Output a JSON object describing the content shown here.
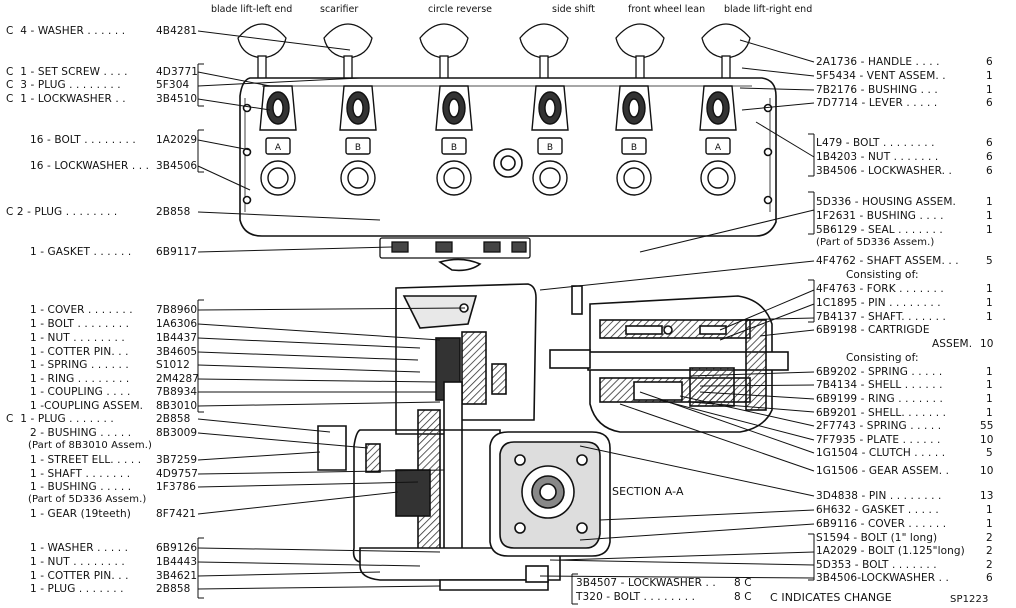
{
  "top_labels": [
    {
      "id": "blade-lift-left",
      "text": "blade lift-left end"
    },
    {
      "id": "scarifier",
      "text": "scarifier"
    },
    {
      "id": "circle-reverse",
      "text": "circle reverse"
    },
    {
      "id": "side-shift",
      "text": "side shift"
    },
    {
      "id": "front-wheel-lean",
      "text": "front wheel lean"
    },
    {
      "id": "blade-lift-right",
      "text": "blade lift-right end"
    }
  ],
  "left_parts": [
    {
      "text": "C  4 - WASHER . . . . . .",
      "num": "4B4281"
    },
    {
      "text": "C  1 - SET SCREW . . . .",
      "num": "4D3771"
    },
    {
      "text": "C  3 - PLUG . . . . . . . .",
      "num": "5F304"
    },
    {
      "text": "C  1 - LOCKWASHER . .",
      "num": "3B4510"
    },
    {
      "text": "16 - BOLT . . . . . . . .",
      "num": "1A2029"
    },
    {
      "text": "16 - LOCKWASHER . . .",
      "num": "3B4506"
    },
    {
      "text": "C 2 - PLUG . . . . . . . .",
      "num": "2B858"
    },
    {
      "text": "1 - GASKET . . . . . .",
      "num": "6B9117"
    },
    {
      "text": "1 - COVER . . . . . . .",
      "num": "7B8960"
    },
    {
      "text": "1 - BOLT . . . . . . . .",
      "num": "1A6306"
    },
    {
      "text": "1 - NUT . . . . . . . .",
      "num": "1B4437"
    },
    {
      "text": "1 - COTTER PIN. . .",
      "num": "3B4605"
    },
    {
      "text": "1 - SPRING . . . . . .",
      "num": "S1012"
    },
    {
      "text": "1 - RING . . . . . . . .",
      "num": "2M4287"
    },
    {
      "text": "1 - COUPLING . . . .",
      "num": "7B8934"
    },
    {
      "text": "1 -COUPLING ASSEM.",
      "num": "8B3010"
    },
    {
      "text": "C  1 - PLUG . . . . . . .",
      "num": "2B858"
    },
    {
      "text": "2 - BUSHING . . . . .",
      "num": "8B3009"
    },
    {
      "text": "(Part of 8B3010 Assem.)",
      "num": ""
    },
    {
      "text": "1 - STREET ELL. . . . .",
      "num": "3B7259"
    },
    {
      "text": "1 - SHAFT . . . . . . .",
      "num": "4D9757"
    },
    {
      "text": "1 - BUSHING . . . . .",
      "num": "1F3786"
    },
    {
      "text": "(Part of 5D336 Assem.)",
      "num": ""
    },
    {
      "text": "1 - GEAR (19teeth)",
      "num": "8F7421"
    },
    {
      "text": "1 - WASHER . . . . .",
      "num": "6B9126"
    },
    {
      "text": "1 - NUT . . . . . . . .",
      "num": "1B4443"
    },
    {
      "text": "1 - COTTER PIN. . .",
      "num": "3B4621"
    },
    {
      "text": "1 - PLUG . . . . . . .",
      "num": "2B858"
    }
  ],
  "right_parts": [
    {
      "text": "2A1736 - HANDLE . . . .",
      "qty": "6"
    },
    {
      "text": "5F5434 - VENT ASSEM. .",
      "qty": "1"
    },
    {
      "text": "7B2176 - BUSHING . . .",
      "qty": "1"
    },
    {
      "text": "7D7714 - LEVER . . . . .",
      "qty": "6"
    },
    {
      "text": "L479 - BOLT . . . . . . . .",
      "qty": "6"
    },
    {
      "text": "1B4203 - NUT . . . . . . .",
      "qty": "6"
    },
    {
      "text": "3B4506 - LOCKWASHER. .",
      "qty": "6"
    },
    {
      "text": "5D336 - HOUSING ASSEM.",
      "qty": "1"
    },
    {
      "text": "1F2631 - BUSHING . . . .",
      "qty": "1"
    },
    {
      "text": "5B6129 - SEAL . . . . . . .",
      "qty": "1"
    },
    {
      "text": "(Part of 5D336 Assem.)",
      "qty": ""
    },
    {
      "text": "4F4762 - SHAFT ASSEM. . .",
      "qty": "5"
    },
    {
      "text": "Consisting of:",
      "qty": ""
    },
    {
      "text": "4F4763 - FORK . . . . . . .",
      "qty": "1"
    },
    {
      "text": "1C1895 - PIN . . . . . . . .",
      "qty": "1"
    },
    {
      "text": "7B4137 - SHAFT. . . . . . .",
      "qty": "1"
    },
    {
      "text": "6B9198 - CARTRIGDE",
      "qty": ""
    },
    {
      "text": "ASSEM.",
      "qty": "10"
    },
    {
      "text": "Consisting of:",
      "qty": ""
    },
    {
      "text": "6B9202 - SPRING . . . . .",
      "qty": "1"
    },
    {
      "text": "7B4134 - SHELL . . . . . .",
      "qty": "1"
    },
    {
      "text": "6B9199 - RING . . . . . . .",
      "qty": "1"
    },
    {
      "text": "6B9201 - SHELL. . . . . . .",
      "qty": "1"
    },
    {
      "text": "2F7743 - SPRING . . . . .",
      "qty": "55"
    },
    {
      "text": "7F7935 - PLATE . . . . . .",
      "qty": "10"
    },
    {
      "text": "1G1504 - CLUTCH . . . . .",
      "qty": "5"
    },
    {
      "text": "1G1506 - GEAR ASSEM. .",
      "qty": "10"
    },
    {
      "text": "3D4838 - PIN . . . . . . . .",
      "qty": "13"
    },
    {
      "text": "6H632 - GASKET . . . . .",
      "qty": "1"
    },
    {
      "text": "6B9116 - COVER . . . . . .",
      "qty": "1"
    },
    {
      "text": "S1594 - BOLT (1\" long)",
      "qty": "2"
    },
    {
      "text": "1A2029 - BOLT (1.125\"long)",
      "qty": "2"
    },
    {
      "text": "5D353 - BOLT . . . . . . .",
      "qty": "2"
    },
    {
      "text": "3B4506-LOCKWASHER . .",
      "qty": "6"
    }
  ],
  "bottom_parts": [
    {
      "text": "3B4507 - LOCKWASHER . .",
      "qty": "8 C"
    },
    {
      "text": "T320 - BOLT . . . . . . . .",
      "qty": "8 C"
    }
  ],
  "section_label": "SECTION A-A",
  "change_note": "C INDICATES CHANGE",
  "figure_id": "SP1223",
  "valve_letters": [
    "A",
    "B",
    "B",
    "B",
    "B",
    "A"
  ],
  "colors": {
    "ink": "#111111",
    "fill_dark": "#3a3a3a",
    "hatch": "#555555",
    "paper": "#ffffff"
  }
}
